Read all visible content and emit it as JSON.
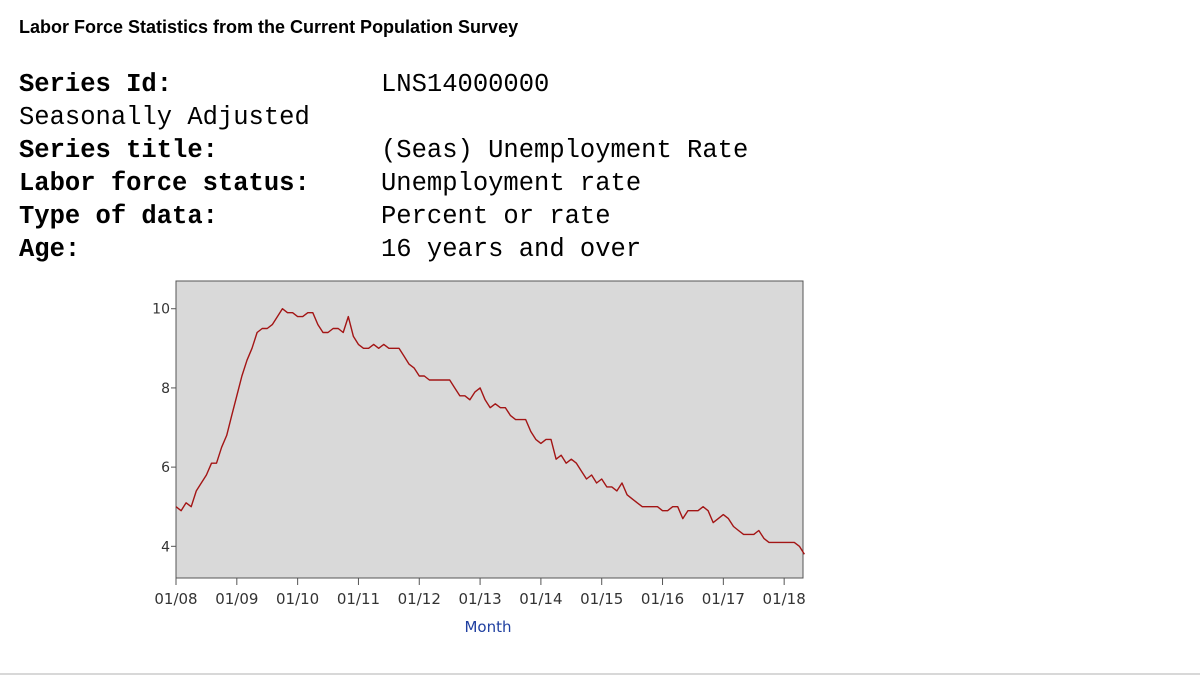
{
  "page": {
    "title": "Labor Force Statistics from the Current Population Survey"
  },
  "series_info": [
    {
      "label": "Series Id:",
      "value": "LNS14000000",
      "bold": true
    },
    {
      "label": "Seasonally Adjusted",
      "value": "",
      "bold": false
    },
    {
      "label": "Series title:",
      "value": "(Seas) Unemployment Rate",
      "bold": true
    },
    {
      "label": "Labor force status:",
      "value": "Unemployment rate",
      "bold": true
    },
    {
      "label": "Type of data:",
      "value": "Percent or rate",
      "bold": true
    },
    {
      "label": "Age:",
      "value": "16 years and over",
      "bold": true
    }
  ],
  "chart_data": {
    "type": "line",
    "title": "",
    "xlabel": "Month",
    "ylabel": "",
    "x_start": "2008-01",
    "x_ticks": [
      "01/08",
      "01/09",
      "01/10",
      "01/11",
      "01/12",
      "01/13",
      "01/14",
      "01/15",
      "01/16",
      "01/17",
      "01/18"
    ],
    "y_ticks": [
      4,
      6,
      8,
      10
    ],
    "ylim": [
      3.2,
      10.7
    ],
    "grid": false,
    "colors": {
      "line": "#a31515",
      "plot_bg": "#d9d9d9",
      "xlabel": "#1f3fa0"
    },
    "series": [
      {
        "values": [
          5.0,
          4.9,
          5.1,
          5.0,
          5.4,
          5.6,
          5.8,
          6.1,
          6.1,
          6.5,
          6.8,
          7.3,
          7.8,
          8.3,
          8.7,
          9.0,
          9.4,
          9.5,
          9.5,
          9.6,
          9.8,
          10.0,
          9.9,
          9.9,
          9.8,
          9.8,
          9.9,
          9.9,
          9.6,
          9.4,
          9.4,
          9.5,
          9.5,
          9.4,
          9.8,
          9.3,
          9.1,
          9.0,
          9.0,
          9.1,
          9.0,
          9.1,
          9.0,
          9.0,
          9.0,
          8.8,
          8.6,
          8.5,
          8.3,
          8.3,
          8.2,
          8.2,
          8.2,
          8.2,
          8.2,
          8.0,
          7.8,
          7.8,
          7.7,
          7.9,
          8.0,
          7.7,
          7.5,
          7.6,
          7.5,
          7.5,
          7.3,
          7.2,
          7.2,
          7.2,
          6.9,
          6.7,
          6.6,
          6.7,
          6.7,
          6.2,
          6.3,
          6.1,
          6.2,
          6.1,
          5.9,
          5.7,
          5.8,
          5.6,
          5.7,
          5.5,
          5.5,
          5.4,
          5.6,
          5.3,
          5.2,
          5.1,
          5.0,
          5.0,
          5.0,
          5.0,
          4.9,
          4.9,
          5.0,
          5.0,
          4.7,
          4.9,
          4.9,
          4.9,
          5.0,
          4.9,
          4.6,
          4.7,
          4.8,
          4.7,
          4.5,
          4.4,
          4.3,
          4.3,
          4.3,
          4.4,
          4.2,
          4.1,
          4.1,
          4.1,
          4.1,
          4.1,
          4.1,
          4.0,
          3.8
        ]
      }
    ]
  }
}
